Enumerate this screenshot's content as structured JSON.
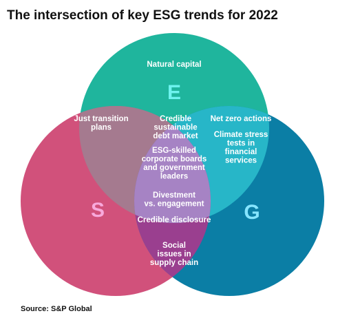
{
  "header": {
    "title": "The intersection of key ESG trends for 2022"
  },
  "circles": [
    {
      "letter": "E"
    },
    {
      "letter": "S"
    },
    {
      "letter": "G"
    }
  ],
  "regions": [
    {
      "lines": [
        "Natural capital"
      ]
    },
    {
      "lines": [
        "Just transition",
        "plans"
      ]
    },
    {
      "lines": [
        "Credible",
        "sustainable",
        "debt market"
      ]
    },
    {
      "lines": [
        "Net zero actions"
      ]
    },
    {
      "lines": [
        "Climate stress",
        "tests in",
        "financial",
        "services"
      ]
    },
    {
      "lines": [
        "ESG-skilled",
        "corporate boards",
        "and government",
        "leaders"
      ]
    },
    {
      "lines": [
        "Divestment",
        "vs. engagement"
      ]
    },
    {
      "lines": [
        "Credible disclosure"
      ]
    },
    {
      "lines": [
        "Social",
        "issues in",
        "supply chain"
      ]
    }
  ],
  "footer": {
    "source": "Source: S&P Global"
  }
}
